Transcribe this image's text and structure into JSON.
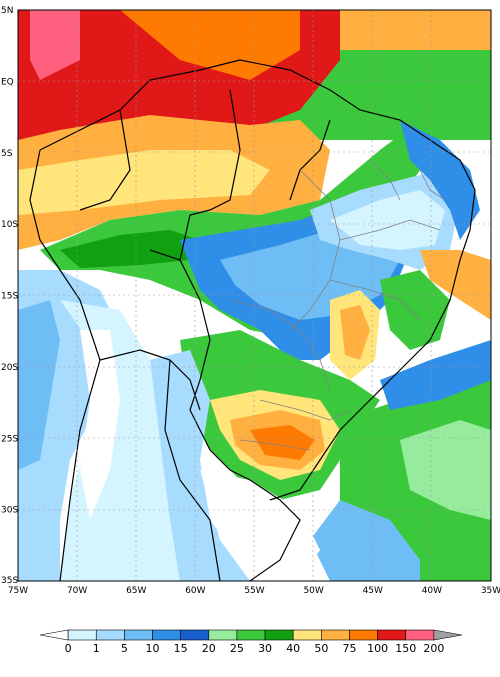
{
  "map": {
    "lat_labels": [
      "5N",
      "EQ",
      "5S",
      "10S",
      "15S",
      "20S",
      "25S",
      "30S",
      "35S"
    ],
    "lon_labels": [
      "75W",
      "70W",
      "65W",
      "60W",
      "55W",
      "50W",
      "45W",
      "40W",
      "35W"
    ]
  },
  "colorbar": {
    "labels": [
      "0",
      "1",
      "5",
      "10",
      "15",
      "20",
      "25",
      "30",
      "40",
      "50",
      "75",
      "100",
      "150",
      "200"
    ],
    "colors": [
      "#ffffff",
      "#d4f4ff",
      "#a8dcff",
      "#6ebef5",
      "#2f8ee8",
      "#1a5fd0",
      "#96ec9c",
      "#3cc83c",
      "#10a010",
      "#ffe57a",
      "#ffb040",
      "#ff7a00",
      "#e01818",
      "#ff6080",
      "#a0a0a0"
    ]
  },
  "palette": {
    "white": "#ffffff",
    "ltblue": "#d4f4ff",
    "blue1": "#a8dcff",
    "blue2": "#6ebef5",
    "blue3": "#2f8ee8",
    "blue4": "#1a5fd0",
    "ltgreen": "#96ec9c",
    "green": "#3cc83c",
    "dkgreen": "#10a010",
    "yellow": "#ffe57a",
    "orange": "#ffb040",
    "dkorange": "#ff7a00",
    "red": "#e01818",
    "pink": "#ff6080"
  }
}
